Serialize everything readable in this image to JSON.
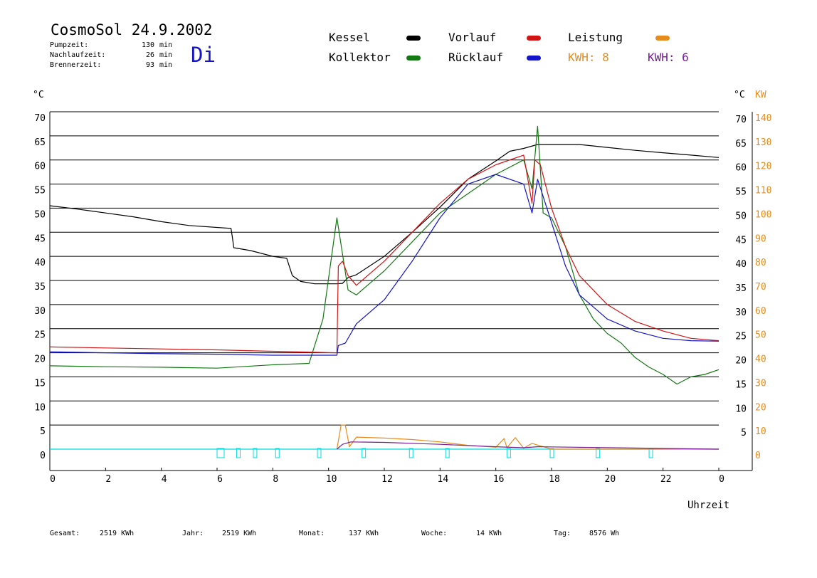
{
  "header": {
    "title": "CosmoSol 24.9.2002",
    "day": "Di",
    "stats": [
      {
        "label": "Pumpzeit:",
        "value": "130",
        "unit": "min"
      },
      {
        "label": "Nachlaufzeit:",
        "value": "26",
        "unit": "min"
      },
      {
        "label": "Brennerzeit:",
        "value": "93",
        "unit": "min"
      }
    ]
  },
  "legend": {
    "kessel": "Kessel",
    "kollektor": "Kollektor",
    "vorlauf": "Vorlauf",
    "ruecklauf": "Rücklauf",
    "leistung": "Leistung",
    "kwh_orange": "KWH: 8",
    "kwh_purple": "KWH: 6"
  },
  "colors": {
    "kessel": "#000000",
    "kollektor": "#147814",
    "vorlauf": "#d21414",
    "ruecklauf": "#1414c8",
    "leistung": "#e68c1e",
    "kwh_purple": "#781e96",
    "pump": "#00dcdc"
  },
  "footer": [
    {
      "label": "Gesamt:",
      "value": "2519 KWh"
    },
    {
      "label": "Jahr:",
      "value": "2519 KWh"
    },
    {
      "label": "Monat:",
      "value": "137 KWh"
    },
    {
      "label": "Woche:",
      "value": "14 KWh"
    },
    {
      "label": "Tag:",
      "value": "8576 Wh"
    }
  ],
  "chart_data": {
    "type": "line",
    "xlabel": "Uhrzeit",
    "ylabel_left": "°C",
    "ylabel_right_1": "°C",
    "ylabel_right_2": "KW",
    "xlim": [
      0,
      24
    ],
    "xticks": [
      "0",
      "2",
      "4",
      "6",
      "8",
      "10",
      "12",
      "14",
      "16",
      "18",
      "20",
      "22",
      "0"
    ],
    "ylim": [
      0,
      70
    ],
    "yticks_left": [
      "0",
      "5",
      "10",
      "15",
      "20",
      "25",
      "30",
      "35",
      "40",
      "45",
      "50",
      "55",
      "60",
      "65",
      "70"
    ],
    "yticks_right_1": [
      "",
      "5",
      "10",
      "15",
      "20",
      "25",
      "30",
      "35",
      "40",
      "45",
      "50",
      "55",
      "60",
      "65",
      "70"
    ],
    "yticks_right_2": [
      "0",
      "10",
      "20",
      "30",
      "40",
      "50",
      "60",
      "70",
      "80",
      "90",
      "100",
      "110",
      "120",
      "130",
      "140"
    ],
    "grid": true,
    "series": [
      {
        "name": "Kessel",
        "key": "kessel",
        "x": [
          0,
          1,
          2,
          3,
          4,
          5,
          6.5,
          6.55,
          6.6,
          7.2,
          8.0,
          8.5,
          8.7,
          9.0,
          9.5,
          10.3,
          10.5,
          10.7,
          11,
          12,
          13,
          14,
          15,
          16,
          16.5,
          17,
          17.5,
          18,
          19,
          20,
          21,
          22,
          23,
          24
        ],
        "y": [
          50.5,
          49.8,
          49,
          48.2,
          47.2,
          46.4,
          45.8,
          44,
          41.8,
          41.2,
          40,
          39.6,
          36,
          34.8,
          34.3,
          34.3,
          34.4,
          35.6,
          36.2,
          40,
          45,
          50.2,
          56,
          59.8,
          61.8,
          62.4,
          63.2,
          63.2,
          63.2,
          62.6,
          62,
          61.5,
          61,
          60.5
        ]
      },
      {
        "name": "Vorlauf",
        "key": "vorlauf",
        "x": [
          0,
          2,
          4,
          6,
          8,
          10.3,
          10.35,
          10.5,
          10.7,
          11,
          12,
          13,
          14,
          15,
          16,
          17,
          17.3,
          17.4,
          17.6,
          18,
          18.5,
          19,
          20,
          21,
          22,
          23,
          24
        ],
        "y": [
          21.2,
          21,
          20.8,
          20.6,
          20.3,
          20,
          38,
          39,
          36,
          34,
          39,
          45,
          51,
          56,
          59,
          61,
          51,
          60,
          59,
          50,
          42,
          36,
          30,
          26.5,
          24.5,
          23,
          22.5
        ]
      },
      {
        "name": "Rücklauf",
        "key": "ruecklauf",
        "x": [
          0,
          2,
          4,
          6,
          8,
          10.3,
          10.35,
          10.6,
          11,
          12,
          13,
          14,
          15,
          16,
          17,
          17.3,
          17.5,
          18,
          18.5,
          19,
          20,
          21,
          22,
          23,
          24
        ],
        "y": [
          20.2,
          20,
          19.8,
          19.7,
          19.5,
          19.5,
          21.5,
          22,
          26,
          31,
          39,
          48,
          55,
          57,
          55,
          49,
          56,
          47,
          38,
          32,
          27,
          24.5,
          23,
          22.5,
          22.4
        ]
      },
      {
        "name": "Kollektor",
        "key": "kollektor",
        "x": [
          0,
          2,
          4,
          6,
          8,
          9.3,
          9.8,
          10.3,
          10.7,
          11,
          12,
          13,
          14,
          15,
          16,
          17,
          17.3,
          17.5,
          17.7,
          18,
          18.5,
          19,
          19.5,
          20,
          20.5,
          21,
          21.5,
          22,
          22.5,
          23,
          23.5,
          24
        ],
        "y": [
          17.3,
          17.1,
          17,
          16.8,
          17.5,
          17.8,
          27,
          48,
          33,
          32,
          37,
          43,
          49,
          53,
          57,
          60,
          54,
          67,
          49,
          48,
          42,
          32,
          27,
          24,
          22,
          19,
          17,
          15.5,
          13.5,
          15,
          15.5,
          16.5
        ]
      },
      {
        "name": "Leistung",
        "key": "leistung",
        "x": [
          10.3,
          10.45,
          10.6,
          10.75,
          11,
          12,
          13,
          14,
          15,
          16,
          16.3,
          16.4,
          16.7,
          17,
          17.3,
          18,
          24
        ],
        "y": [
          0,
          5,
          5,
          0.5,
          2.5,
          2.3,
          2.0,
          1.5,
          0.8,
          0.4,
          2.2,
          0.3,
          2.4,
          0.2,
          1.2,
          0,
          0
        ]
      },
      {
        "name": "KWH: 6",
        "key": "kwh_purple",
        "x": [
          10.3,
          10.5,
          10.8,
          12,
          14,
          16,
          17,
          17.5,
          24
        ],
        "y": [
          0,
          1,
          1.5,
          1.4,
          1.0,
          0.5,
          0.3,
          0.5,
          0
        ]
      }
    ],
    "pump_on_hours": [
      6.0,
      6.7,
      7.3,
      8.1,
      9.6,
      11.2,
      12.9,
      14.2,
      16.4,
      17.95,
      19.6,
      21.5
    ]
  }
}
